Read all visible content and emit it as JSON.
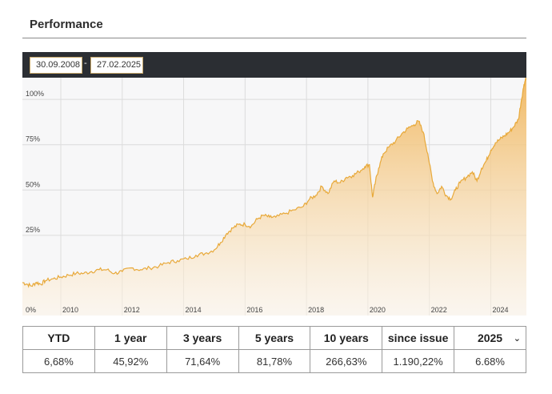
{
  "header": {
    "title": "Performance"
  },
  "range": {
    "start": "30.09.2008",
    "separator": "-",
    "end": "27.02.2025"
  },
  "colors": {
    "line": "#e8a93a",
    "fill_top": "#f0b55a",
    "fill_bottom": "#fdf4e6",
    "toolbar": "#2b2e33"
  },
  "chart_data": {
    "type": "area",
    "x_tick_labels": [
      "2010",
      "2012",
      "2014",
      "2016",
      "2018",
      "2020",
      "2022",
      "2024"
    ],
    "y_tick_labels": [
      "0%",
      "25%",
      "50%",
      "75%",
      "100%"
    ],
    "y_ticks": [
      0,
      25,
      50,
      75,
      100
    ],
    "xlim": [
      2008.75,
      2025.16
    ],
    "ylim": [
      -10,
      112
    ],
    "grid": true,
    "x": [
      2008.75,
      2008.9,
      2009.05,
      2009.2,
      2009.35,
      2009.5,
      2009.75,
      2010.0,
      2010.25,
      2010.5,
      2010.75,
      2011.0,
      2011.25,
      2011.5,
      2011.75,
      2012.0,
      2012.3,
      2012.6,
      2012.9,
      2013.2,
      2013.5,
      2013.8,
      2014.1,
      2014.4,
      2014.7,
      2015.0,
      2015.2,
      2015.4,
      2015.6,
      2015.8,
      2016.0,
      2016.2,
      2016.4,
      2016.6,
      2016.8,
      2017.0,
      2017.3,
      2017.6,
      2017.9,
      2018.1,
      2018.3,
      2018.5,
      2018.7,
      2018.9,
      2019.1,
      2019.3,
      2019.5,
      2019.7,
      2019.9,
      2020.05,
      2020.15,
      2020.25,
      2020.35,
      2020.5,
      2020.7,
      2020.9,
      2021.1,
      2021.3,
      2021.5,
      2021.65,
      2021.8,
      2021.95,
      2022.1,
      2022.25,
      2022.4,
      2022.55,
      2022.7,
      2022.85,
      2023.0,
      2023.2,
      2023.4,
      2023.55,
      2023.7,
      2023.85,
      2024.0,
      2024.15,
      2024.3,
      2024.45,
      2024.6,
      2024.75,
      2024.9,
      2025.0,
      2025.08,
      2025.16
    ],
    "y": [
      -1,
      -2,
      -3,
      -1,
      -2,
      0,
      1,
      2,
      3,
      4,
      4,
      5,
      6,
      6,
      4,
      5,
      7,
      6,
      7,
      8,
      10,
      11,
      12,
      14,
      15,
      17,
      21,
      26,
      29,
      31,
      31,
      30,
      34,
      36,
      35,
      35,
      37,
      39,
      41,
      45,
      47,
      52,
      48,
      55,
      54,
      57,
      58,
      60,
      63,
      64,
      46,
      55,
      62,
      70,
      74,
      77,
      81,
      84,
      86,
      88,
      82,
      70,
      55,
      48,
      52,
      47,
      45,
      50,
      54,
      57,
      60,
      55,
      62,
      66,
      72,
      76,
      78,
      80,
      82,
      85,
      89,
      100,
      108,
      113
    ]
  },
  "table": {
    "headers": [
      "YTD",
      "1 year",
      "3 years",
      "5 years",
      "10 years",
      "since issue"
    ],
    "values": [
      "6,68%",
      "45,92%",
      "71,64%",
      "81,78%",
      "266,63%",
      "1.190,22%"
    ],
    "year_select": {
      "selected": "2025",
      "value": "6.68%",
      "icon": "chevron-down-icon"
    }
  }
}
